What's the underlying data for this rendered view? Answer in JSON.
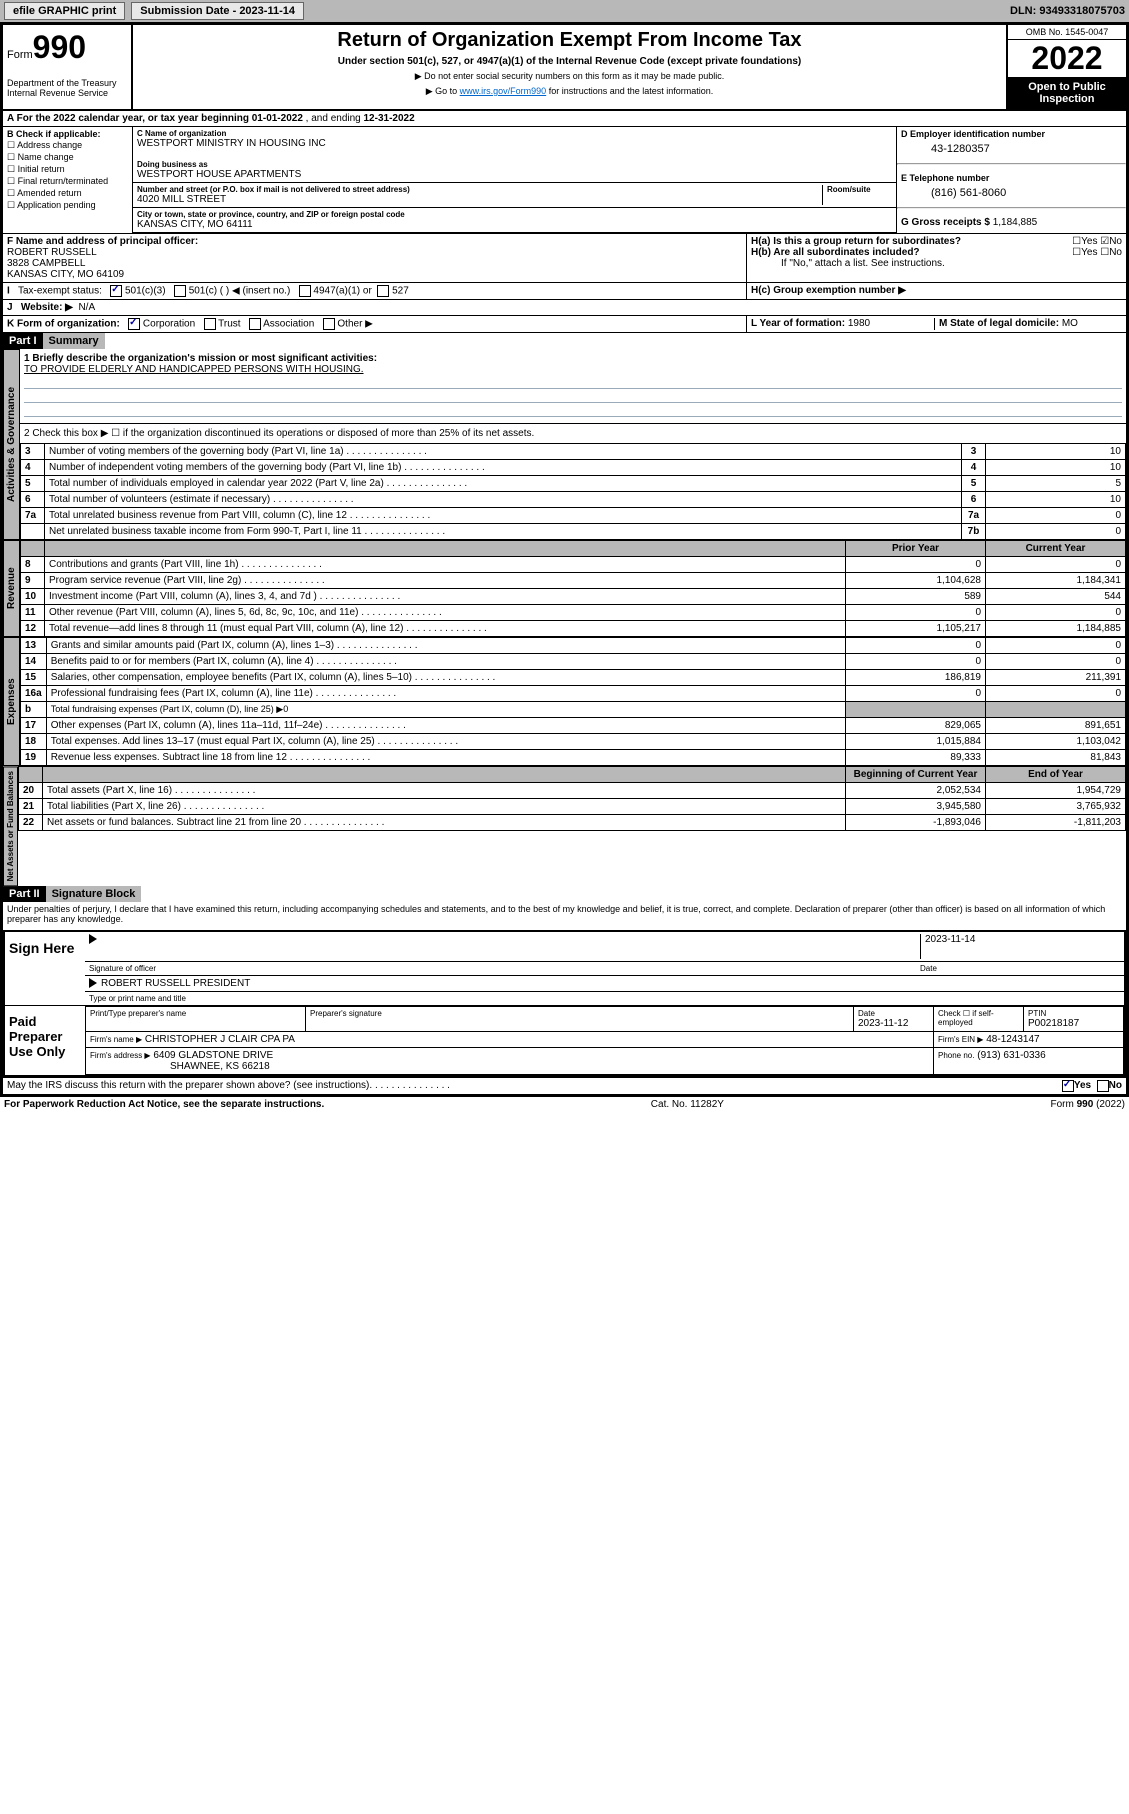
{
  "topbar": {
    "efile": "efile GRAPHIC print",
    "submission": "Submission Date - 2023-11-14",
    "dln": "DLN: 93493318075703"
  },
  "header": {
    "form_label": "Form",
    "form_number": "990",
    "dept": "Department of the Treasury\nInternal Revenue Service",
    "title": "Return of Organization Exempt From Income Tax",
    "subtitle": "Under section 501(c), 527, or 4947(a)(1) of the Internal Revenue Code (except private foundations)",
    "note1": "▶ Do not enter social security numbers on this form as it may be made public.",
    "note2_pre": "▶ Go to ",
    "note2_link": "www.irs.gov/Form990",
    "note2_post": " for instructions and the latest information.",
    "omb": "OMB No. 1545-0047",
    "year": "2022",
    "open": "Open to Public Inspection"
  },
  "period": {
    "label_a": "A For the 2022 calendar year, or tax year beginning ",
    "begin": "01-01-2022",
    "mid": " , and ending ",
    "end": "12-31-2022"
  },
  "check_b": {
    "label": "B Check if applicable:",
    "items": [
      "Address change",
      "Name change",
      "Initial return",
      "Final return/terminated",
      "Amended return",
      "Application pending"
    ]
  },
  "org": {
    "name_lab": "C Name of organization",
    "name": "WESTPORT MINISTRY IN HOUSING INC",
    "dba_lab": "Doing business as",
    "dba": "WESTPORT HOUSE APARTMENTS",
    "addr_lab": "Number and street (or P.O. box if mail is not delivered to street address)",
    "room_lab": "Room/suite",
    "addr": "4020 MILL STREET",
    "city_lab": "City or town, state or province, country, and ZIP or foreign postal code",
    "city": "KANSAS CITY, MO  64111"
  },
  "ein": {
    "lab": "D Employer identification number",
    "val": "43-1280357"
  },
  "tel": {
    "lab": "E Telephone number",
    "val": "(816) 561-8060"
  },
  "gross": {
    "lab": "G Gross receipts $",
    "val": "1,184,885"
  },
  "officer": {
    "lab": "F Name and address of principal officer:",
    "name": "ROBERT RUSSELL",
    "addr1": "3828 CAMPBELL",
    "addr2": "KANSAS CITY, MO  64109"
  },
  "ha": {
    "lab": "H(a)  Is this a group return for subordinates?",
    "yes": "Yes",
    "no": "No"
  },
  "hb": {
    "lab": "H(b)  Are all subordinates included?",
    "yes": "Yes",
    "no": "No",
    "note": "If \"No,\" attach a list. See instructions."
  },
  "hc": {
    "lab": "H(c)  Group exemption number ▶"
  },
  "tax_status": {
    "lab_i": "I",
    "lab": "Tax-exempt status:",
    "c3": "501(c)(3)",
    "c": "501(c) (  ) ◀ (insert no.)",
    "a1": "4947(a)(1) or",
    "527": "527"
  },
  "website": {
    "lab_j": "J",
    "lab": "Website: ▶",
    "val": "N/A"
  },
  "k": {
    "lab": "K Form of organization:",
    "corp": "Corporation",
    "trust": "Trust",
    "assoc": "Association",
    "other": "Other ▶"
  },
  "l": {
    "lab": "L Year of formation:",
    "val": "1980"
  },
  "m": {
    "lab": "M State of legal domicile:",
    "val": "MO"
  },
  "part1": {
    "hdr": "Part I",
    "title": "Summary"
  },
  "mission": {
    "lab": "1  Briefly describe the organization's mission or most significant activities:",
    "text": "TO PROVIDE ELDERLY AND HANDICAPPED PERSONS WITH HOUSING."
  },
  "line2": "2   Check this box ▶ ☐  if the organization discontinued its operations or disposed of more than 25% of its net assets.",
  "gov_lines": [
    {
      "n": "3",
      "d": "Number of voting members of the governing body (Part VI, line 1a)",
      "b": "3",
      "v": "10"
    },
    {
      "n": "4",
      "d": "Number of independent voting members of the governing body (Part VI, line 1b)",
      "b": "4",
      "v": "10"
    },
    {
      "n": "5",
      "d": "Total number of individuals employed in calendar year 2022 (Part V, line 2a)",
      "b": "5",
      "v": "5"
    },
    {
      "n": "6",
      "d": "Total number of volunteers (estimate if necessary)",
      "b": "6",
      "v": "10"
    },
    {
      "n": "7a",
      "d": "Total unrelated business revenue from Part VIII, column (C), line 12",
      "b": "7a",
      "v": "0"
    },
    {
      "n": "",
      "d": "Net unrelated business taxable income from Form 990-T, Part I, line 11",
      "b": "7b",
      "v": "0"
    }
  ],
  "rev_hdr": {
    "prior": "Prior Year",
    "current": "Current Year"
  },
  "rev_lines": [
    {
      "n": "8",
      "d": "Contributions and grants (Part VIII, line 1h)",
      "p": "0",
      "c": "0"
    },
    {
      "n": "9",
      "d": "Program service revenue (Part VIII, line 2g)",
      "p": "1,104,628",
      "c": "1,184,341"
    },
    {
      "n": "10",
      "d": "Investment income (Part VIII, column (A), lines 3, 4, and 7d )",
      "p": "589",
      "c": "544"
    },
    {
      "n": "11",
      "d": "Other revenue (Part VIII, column (A), lines 5, 6d, 8c, 9c, 10c, and 11e)",
      "p": "0",
      "c": "0"
    },
    {
      "n": "12",
      "d": "Total revenue—add lines 8 through 11 (must equal Part VIII, column (A), line 12)",
      "p": "1,105,217",
      "c": "1,184,885"
    }
  ],
  "exp_lines": [
    {
      "n": "13",
      "d": "Grants and similar amounts paid (Part IX, column (A), lines 1–3)",
      "p": "0",
      "c": "0"
    },
    {
      "n": "14",
      "d": "Benefits paid to or for members (Part IX, column (A), line 4)",
      "p": "0",
      "c": "0"
    },
    {
      "n": "15",
      "d": "Salaries, other compensation, employee benefits (Part IX, column (A), lines 5–10)",
      "p": "186,819",
      "c": "211,391"
    },
    {
      "n": "16a",
      "d": "Professional fundraising fees (Part IX, column (A), line 11e)",
      "p": "0",
      "c": "0"
    },
    {
      "n": "b",
      "d": "Total fundraising expenses (Part IX, column (D), line 25) ▶0",
      "p": "",
      "c": ""
    },
    {
      "n": "17",
      "d": "Other expenses (Part IX, column (A), lines 11a–11d, 11f–24e)",
      "p": "829,065",
      "c": "891,651"
    },
    {
      "n": "18",
      "d": "Total expenses. Add lines 13–17 (must equal Part IX, column (A), line 25)",
      "p": "1,015,884",
      "c": "1,103,042"
    },
    {
      "n": "19",
      "d": "Revenue less expenses. Subtract line 18 from line 12",
      "p": "89,333",
      "c": "81,843"
    }
  ],
  "net_hdr": {
    "begin": "Beginning of Current Year",
    "end": "End of Year"
  },
  "net_lines": [
    {
      "n": "20",
      "d": "Total assets (Part X, line 16)",
      "p": "2,052,534",
      "c": "1,954,729"
    },
    {
      "n": "21",
      "d": "Total liabilities (Part X, line 26)",
      "p": "3,945,580",
      "c": "3,765,932"
    },
    {
      "n": "22",
      "d": "Net assets or fund balances. Subtract line 21 from line 20",
      "p": "-1,893,046",
      "c": "-1,811,203"
    }
  ],
  "section_labels": {
    "gov": "Activities & Governance",
    "rev": "Revenue",
    "exp": "Expenses",
    "net": "Net Assets or Fund Balances"
  },
  "part2": {
    "hdr": "Part II",
    "title": "Signature Block"
  },
  "penalties": "Under penalties of perjury, I declare that I have examined this return, including accompanying schedules and statements, and to the best of my knowledge and belief, it is true, correct, and complete. Declaration of preparer (other than officer) is based on all information of which preparer has any knowledge.",
  "sign": {
    "here": "Sign Here",
    "sig_lab": "Signature of officer",
    "date_lab": "Date",
    "date": "2023-11-14",
    "name": "ROBERT RUSSELL  PRESIDENT",
    "name_lab": "Type or print name and title"
  },
  "paid": {
    "title": "Paid Preparer Use Only",
    "print_lab": "Print/Type preparer's name",
    "sig_lab": "Preparer's signature",
    "date_lab": "Date",
    "date": "2023-11-12",
    "check_lab": "Check ☐ if self-employed",
    "ptin_lab": "PTIN",
    "ptin": "P00218187",
    "firm_name_lab": "Firm's name    ▶",
    "firm_name": "CHRISTOPHER J CLAIR CPA PA",
    "firm_ein_lab": "Firm's EIN ▶",
    "firm_ein": "48-1243147",
    "firm_addr_lab": "Firm's address ▶",
    "firm_addr1": "6409 GLADSTONE DRIVE",
    "firm_addr2": "SHAWNEE, KS  66218",
    "phone_lab": "Phone no.",
    "phone": "(913) 631-0336"
  },
  "discuss": {
    "q": "May the IRS discuss this return with the preparer shown above? (see instructions)",
    "yes": "Yes",
    "no": "No"
  },
  "footer": {
    "left": "For Paperwork Reduction Act Notice, see the separate instructions.",
    "mid": "Cat. No. 11282Y",
    "right": "Form 990 (2022)"
  }
}
